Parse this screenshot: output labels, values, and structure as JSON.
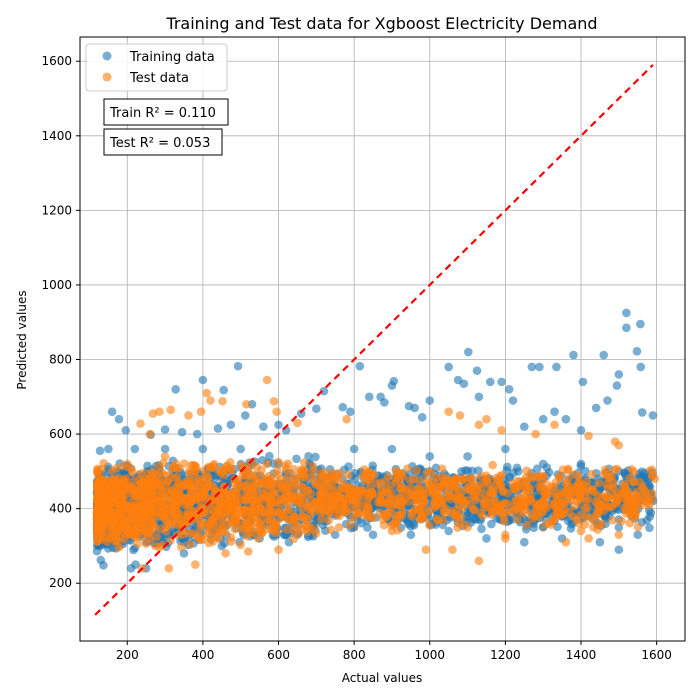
{
  "chart_data": {
    "type": "scatter",
    "title": "Training and Test data for Xgboost Electricity Demand",
    "xlabel": "Actual values",
    "ylabel": "Predicted values",
    "xlim": [
      75,
      1675
    ],
    "ylim": [
      45,
      1665
    ],
    "xticks": [
      200,
      400,
      600,
      800,
      1000,
      1200,
      1400,
      1600
    ],
    "yticks": [
      200,
      400,
      600,
      800,
      1000,
      1200,
      1400,
      1600
    ],
    "grid": true,
    "legend_position": "top-left",
    "annotations": [
      "Train R² = 0.110",
      "Test R² = 0.053"
    ],
    "reference_line": {
      "style": "dashed",
      "color": "#ff0000",
      "x": [
        115,
        1590
      ],
      "y": [
        115,
        1590
      ]
    },
    "series": [
      {
        "name": "Training data",
        "color": "#1f77b4",
        "points": [
          [
            128,
            555
          ],
          [
            130,
            262
          ],
          [
            137,
            248
          ],
          [
            160,
            660
          ],
          [
            178,
            640
          ],
          [
            196,
            610
          ],
          [
            210,
            240
          ],
          [
            222,
            250
          ],
          [
            262,
            598
          ],
          [
            300,
            612
          ],
          [
            328,
            720
          ],
          [
            345,
            605
          ],
          [
            385,
            600
          ],
          [
            400,
            745
          ],
          [
            440,
            615
          ],
          [
            455,
            718
          ],
          [
            474,
            625
          ],
          [
            493,
            782
          ],
          [
            512,
            650
          ],
          [
            530,
            680
          ],
          [
            560,
            620
          ],
          [
            600,
            625
          ],
          [
            620,
            610
          ],
          [
            660,
            655
          ],
          [
            700,
            668
          ],
          [
            720,
            715
          ],
          [
            770,
            672
          ],
          [
            790,
            660
          ],
          [
            815,
            782
          ],
          [
            840,
            700
          ],
          [
            870,
            700
          ],
          [
            900,
            730
          ],
          [
            905,
            742
          ],
          [
            945,
            675
          ],
          [
            1050,
            780
          ],
          [
            1075,
            745
          ],
          [
            1090,
            735
          ],
          [
            1102,
            820
          ],
          [
            1125,
            770
          ],
          [
            1160,
            740
          ],
          [
            1190,
            740
          ],
          [
            1210,
            720
          ],
          [
            1220,
            690
          ],
          [
            1270,
            780
          ],
          [
            1290,
            780
          ],
          [
            1335,
            780
          ],
          [
            1380,
            812
          ],
          [
            1405,
            740
          ],
          [
            1460,
            812
          ],
          [
            1495,
            730
          ],
          [
            1520,
            925
          ],
          [
            1548,
            822
          ],
          [
            1558,
            780
          ],
          [
            1562,
            658
          ],
          [
            1590,
            650
          ],
          [
            1130,
            700
          ],
          [
            1000,
            690
          ],
          [
            960,
            670
          ],
          [
            880,
            685
          ],
          [
            980,
            645
          ],
          [
            1440,
            670
          ],
          [
            1470,
            690
          ],
          [
            1520,
            885
          ],
          [
            1557,
            895
          ],
          [
            1500,
            760
          ],
          [
            1330,
            660
          ],
          [
            1360,
            640
          ],
          [
            1400,
            610
          ],
          [
            1250,
            620
          ],
          [
            1300,
            640
          ],
          [
            600,
            520
          ],
          [
            700,
            480
          ],
          [
            800,
            450
          ],
          [
            900,
            420
          ],
          [
            1000,
            500
          ],
          [
            1100,
            460
          ],
          [
            1200,
            430
          ],
          [
            1300,
            480
          ],
          [
            1400,
            400
          ],
          [
            1500,
            350
          ],
          [
            800,
            560
          ],
          [
            900,
            560
          ],
          [
            1000,
            540
          ],
          [
            1100,
            540
          ],
          [
            1200,
            560
          ],
          [
            1300,
            520
          ],
          [
            1400,
            520
          ],
          [
            1500,
            500
          ],
          [
            1580,
            480
          ],
          [
            1590,
            420
          ],
          [
            150,
            560
          ],
          [
            220,
            560
          ],
          [
            300,
            560
          ],
          [
            400,
            560
          ],
          [
            500,
            560
          ],
          [
            250,
            240
          ],
          [
            350,
            280
          ],
          [
            450,
            300
          ],
          [
            550,
            320
          ],
          [
            650,
            330
          ],
          [
            750,
            330
          ],
          [
            850,
            330
          ],
          [
            950,
            330
          ],
          [
            1050,
            340
          ],
          [
            1150,
            320
          ],
          [
            1250,
            310
          ],
          [
            1350,
            320
          ],
          [
            1450,
            310
          ],
          [
            1550,
            330
          ],
          [
            1500,
            290
          ]
        ]
      },
      {
        "name": "Test data",
        "color": "#ff7f0e",
        "points": [
          [
            235,
            628
          ],
          [
            260,
            600
          ],
          [
            268,
            655
          ],
          [
            285,
            660
          ],
          [
            315,
            665
          ],
          [
            362,
            650
          ],
          [
            395,
            660
          ],
          [
            410,
            710
          ],
          [
            420,
            690
          ],
          [
            452,
            688
          ],
          [
            515,
            680
          ],
          [
            570,
            745
          ],
          [
            588,
            688
          ],
          [
            595,
            660
          ],
          [
            650,
            630
          ],
          [
            780,
            640
          ],
          [
            1050,
            660
          ],
          [
            1080,
            650
          ],
          [
            1130,
            625
          ],
          [
            1150,
            640
          ],
          [
            1190,
            610
          ],
          [
            1280,
            600
          ],
          [
            1330,
            625
          ],
          [
            1420,
            595
          ],
          [
            1490,
            580
          ],
          [
            1500,
            570
          ],
          [
            1580,
            500
          ],
          [
            1595,
            480
          ],
          [
            240,
            240
          ],
          [
            310,
            240
          ],
          [
            380,
            250
          ],
          [
            460,
            280
          ],
          [
            520,
            285
          ],
          [
            600,
            290
          ],
          [
            990,
            290
          ],
          [
            1060,
            290
          ],
          [
            1130,
            260
          ],
          [
            1200,
            320
          ],
          [
            1360,
            310
          ],
          [
            1420,
            320
          ],
          [
            200,
            520
          ],
          [
            250,
            500
          ],
          [
            300,
            540
          ],
          [
            350,
            460
          ],
          [
            400,
            500
          ],
          [
            450,
            480
          ],
          [
            500,
            440
          ],
          [
            550,
            460
          ],
          [
            600,
            470
          ],
          [
            650,
            430
          ],
          [
            700,
            450
          ],
          [
            750,
            470
          ],
          [
            800,
            440
          ],
          [
            850,
            450
          ],
          [
            900,
            430
          ],
          [
            950,
            460
          ],
          [
            1000,
            440
          ],
          [
            1050,
            420
          ],
          [
            1100,
            450
          ],
          [
            1150,
            460
          ],
          [
            1200,
            430
          ],
          [
            1250,
            450
          ],
          [
            1300,
            420
          ],
          [
            1350,
            440
          ],
          [
            1400,
            410
          ],
          [
            1450,
            430
          ],
          [
            1500,
            420
          ],
          [
            1550,
            450
          ],
          [
            1580,
            440
          ],
          [
            300,
            350
          ],
          [
            400,
            330
          ],
          [
            500,
            360
          ],
          [
            600,
            340
          ],
          [
            700,
            360
          ],
          [
            800,
            350
          ],
          [
            900,
            340
          ],
          [
            1000,
            360
          ],
          [
            1100,
            350
          ],
          [
            1200,
            330
          ],
          [
            1300,
            350
          ],
          [
            1400,
            340
          ],
          [
            1500,
            330
          ],
          [
            160,
            400
          ],
          [
            180,
            300
          ],
          [
            190,
            480
          ],
          [
            210,
            420
          ],
          [
            230,
            360
          ],
          [
            270,
            380
          ],
          [
            330,
            420
          ],
          [
            370,
            390
          ]
        ]
      }
    ]
  }
}
